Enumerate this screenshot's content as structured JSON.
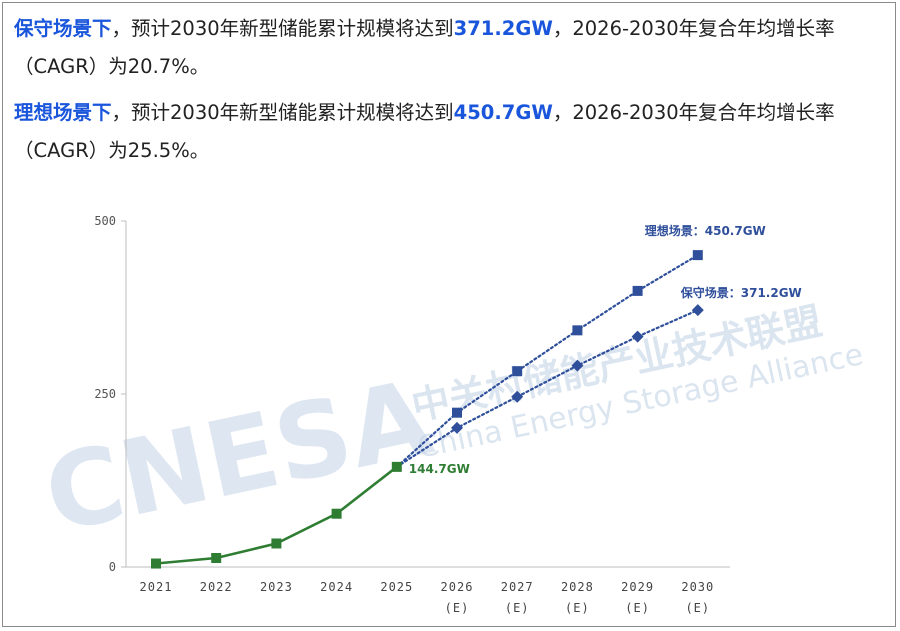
{
  "paragraphs": [
    {
      "lead": "保守场景下",
      "pre": "，预计2030年新型储能累计规模将达到",
      "value": "371.2GW",
      "post": "，2026-2030年复合年均增长率（CAGR）为20.7%。"
    },
    {
      "lead": "理想场景下",
      "pre": "，预计2030年新型储能累计规模将达到",
      "value": "450.7GW",
      "post": "，2026-2030年复合年均增长率（CAGR）为25.5%。"
    }
  ],
  "watermark": {
    "logo": "CNESA",
    "cn": "中关村储能产业技术联盟",
    "en": "China Energy Storage Alliance"
  },
  "colors": {
    "actual": "#2e7d32",
    "ideal": "#2f4f9b",
    "conservative": "#2f4f9b",
    "text_highlight": "#1a56db"
  },
  "chart_data": {
    "type": "line",
    "categories": [
      {
        "year": "2021",
        "sub": ""
      },
      {
        "year": "2022",
        "sub": ""
      },
      {
        "year": "2023",
        "sub": ""
      },
      {
        "year": "2024",
        "sub": ""
      },
      {
        "year": "2025",
        "sub": ""
      },
      {
        "year": "2026",
        "sub": "(E)"
      },
      {
        "year": "2027",
        "sub": "(E)"
      },
      {
        "year": "2028",
        "sub": "(E)"
      },
      {
        "year": "2029",
        "sub": "(E)"
      },
      {
        "year": "2030",
        "sub": "(E)"
      }
    ],
    "ylim": [
      0,
      500
    ],
    "yticks": [
      "0",
      "250",
      "500"
    ],
    "grid": false,
    "series": [
      {
        "key": "actual",
        "marker": "square",
        "style": "solid",
        "values": [
          5,
          13,
          34,
          77,
          144.7,
          null,
          null,
          null,
          null,
          null
        ]
      },
      {
        "key": "ideal",
        "marker": "square",
        "style": "dotted",
        "values": [
          null,
          null,
          null,
          null,
          144.7,
          223,
          283,
          342,
          399,
          450.7
        ]
      },
      {
        "key": "conservative",
        "marker": "diamond",
        "style": "dotted",
        "values": [
          null,
          null,
          null,
          null,
          144.7,
          201,
          246,
          291,
          333,
          371.2
        ]
      }
    ],
    "annotations": [
      {
        "key": "actual",
        "index": 4,
        "text": "144.7GW"
      },
      {
        "key": "ideal",
        "index": 9,
        "text": "理想场景：450.7GW"
      },
      {
        "key": "conservative",
        "index": 9,
        "text": "保守场景：371.2GW"
      }
    ]
  }
}
